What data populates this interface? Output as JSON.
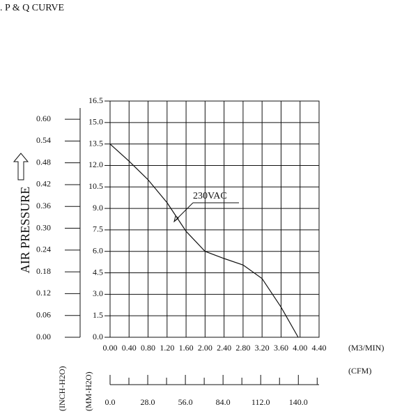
{
  "chart_data": {
    "type": "line",
    "title": ". P & Q CURVE",
    "y_label": "AIR PRESSURE",
    "x_unit": "(M3/MIN)",
    "x2_unit": "(CFM)",
    "y_unit": "(MM-H2O)",
    "y2_unit": "(INCH-H2O)",
    "x": [
      0,
      0.4,
      0.8,
      1.2,
      1.6,
      2.0,
      2.4,
      2.8,
      3.2,
      3.6,
      3.96
    ],
    "series": [
      {
        "name": "230VAC",
        "color": "#111111",
        "values": [
          13.5,
          12.3,
          11.0,
          9.4,
          7.4,
          6.0,
          5.5,
          5.05,
          4.1,
          2.1,
          0
        ]
      }
    ],
    "xlim": [
      0,
      4.4
    ],
    "xticks": [
      {
        "value": 0,
        "label": "0.00"
      },
      {
        "value": 0.4,
        "label": "0.40"
      },
      {
        "value": 0.8,
        "label": "0.80"
      },
      {
        "value": 1.2,
        "label": "1.20"
      },
      {
        "value": 1.6,
        "label": "1.60"
      },
      {
        "value": 2.0,
        "label": "2.00"
      },
      {
        "value": 2.4,
        "label": "2.40"
      },
      {
        "value": 2.8,
        "label": "2.80"
      },
      {
        "value": 3.2,
        "label": "3.20"
      },
      {
        "value": 3.6,
        "label": "3.60"
      },
      {
        "value": 4.0,
        "label": "4.00"
      },
      {
        "value": 4.4,
        "label": "4.40"
      }
    ],
    "ylim": [
      0,
      16.5
    ],
    "yticks": [
      {
        "value": 0,
        "label": "0.0"
      },
      1.5,
      {
        "value": 3,
        "label": "3.0"
      },
      4.5,
      {
        "value": 6,
        "label": "6.0"
      },
      7.5,
      {
        "value": 9,
        "label": "9.0"
      },
      10.5,
      {
        "value": 12,
        "label": "12.0"
      },
      13.5,
      {
        "value": 15,
        "label": "15.0"
      },
      16.5
    ],
    "y2lim": [
      0,
      0.65
    ],
    "y2ticks": [
      {
        "value": 0,
        "label": "0.00"
      },
      0.06,
      0.12,
      0.18,
      0.24,
      {
        "value": 0.3,
        "label": "0.30"
      },
      0.36,
      0.42,
      0.48,
      0.54,
      {
        "value": 0.6,
        "label": "0.60"
      }
    ],
    "x2lim": [
      0,
      155.4
    ],
    "x2ticks": [
      {
        "value": 0,
        "label": "0.0"
      },
      {
        "value": 28,
        "label": "28.0"
      },
      {
        "value": 56,
        "label": "56.0"
      },
      {
        "value": 84,
        "label": "84.0"
      },
      {
        "value": 112,
        "label": "112.0"
      },
      {
        "value": 140,
        "label": "140.0"
      }
    ],
    "x2minor": [
      14,
      42,
      70,
      98,
      126,
      154
    ],
    "grid": true
  }
}
